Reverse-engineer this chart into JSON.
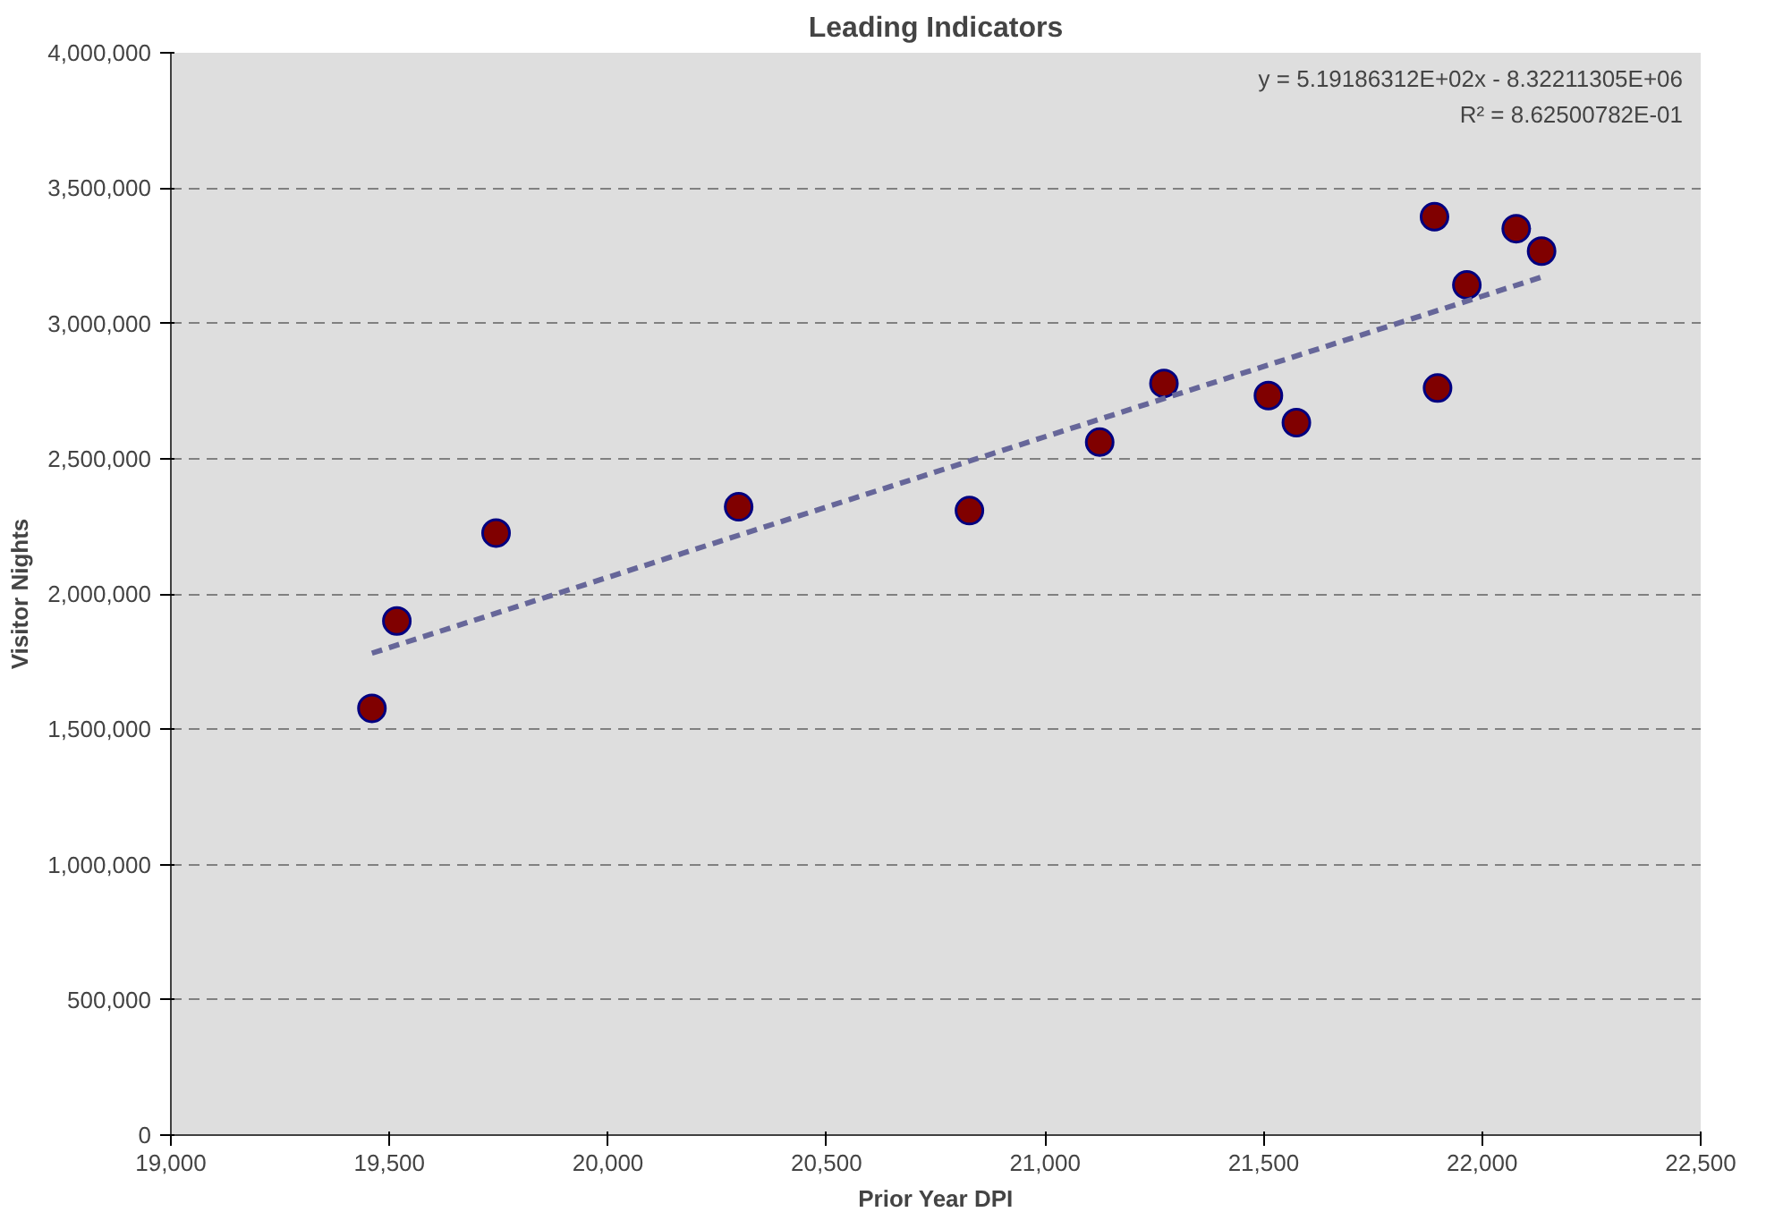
{
  "chart_data": {
    "type": "scatter",
    "title": "Leading Indicators",
    "xlabel": "Prior Year DPI",
    "ylabel": "Visitor Nights",
    "series": [
      {
        "color": "#800000",
        "marker": "circle",
        "x": [
          19460,
          19517,
          19744,
          20299,
          20827,
          21125,
          21272,
          21511,
          21575,
          21891,
          21898,
          21965,
          22078,
          22136
        ],
        "values": [
          1577000,
          1900000,
          2225000,
          2322000,
          2308000,
          2561000,
          2778000,
          2733000,
          2633000,
          3394000,
          2761000,
          3142000,
          3350000,
          3267000
        ]
      },
      {
        "type": "line",
        "color": "#666699",
        "line_style": "dashed",
        "x": [
          19460,
          22136
        ],
        "values": [
          1781000,
          3171000
        ]
      }
    ],
    "annotations": [
      "y = 5.19186312E+02x - 8.32211305E+06",
      "R² = 8.62500782E-01"
    ],
    "xlim": [
      19000,
      22500
    ],
    "xticks": [
      {
        "value": 19000,
        "label": "19,000"
      },
      {
        "value": 19500,
        "label": "19,500"
      },
      {
        "value": 20000,
        "label": "20,000"
      },
      {
        "value": 20500,
        "label": "20,500"
      },
      {
        "value": 21000,
        "label": "21,000"
      },
      {
        "value": 21500,
        "label": "21,500"
      },
      {
        "value": 22000,
        "label": "22,000"
      },
      {
        "value": 22500,
        "label": "22,500"
      }
    ],
    "ylim": [
      0,
      4000000
    ],
    "yticks": [
      0,
      {
        "value": 500000,
        "label": "500,000"
      },
      {
        "value": 1000000,
        "label": "1,000,000"
      },
      {
        "value": 1500000,
        "label": "1,500,000"
      },
      {
        "value": 2000000,
        "label": "2,000,000"
      },
      {
        "value": 2500000,
        "label": "2,500,000"
      },
      {
        "value": 3000000,
        "label": "3,000,000"
      },
      {
        "value": 3500000,
        "label": "3,500,000"
      },
      {
        "value": 4000000,
        "label": "4,000,000"
      }
    ],
    "grid": "y"
  }
}
